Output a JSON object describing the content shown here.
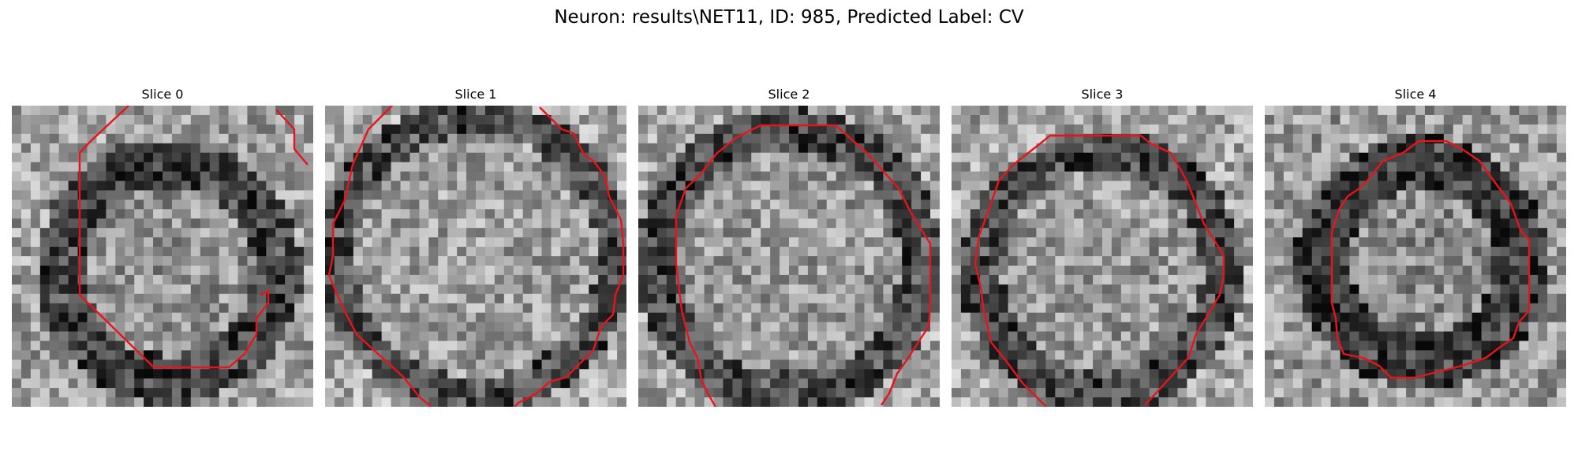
{
  "figure": {
    "title": "Neuron: results\\NET11, ID: 985, Predicted Label: CV"
  },
  "panels": [
    {
      "title": "Slice 0",
      "contour_color": "#e8141b"
    },
    {
      "title": "Slice 1",
      "contour_color": "#e8141b"
    },
    {
      "title": "Slice 2",
      "contour_color": "#e8141b"
    },
    {
      "title": "Slice 3",
      "contour_color": "#e8141b"
    },
    {
      "title": "Slice 4",
      "contour_color": "#e8141b"
    }
  ]
}
